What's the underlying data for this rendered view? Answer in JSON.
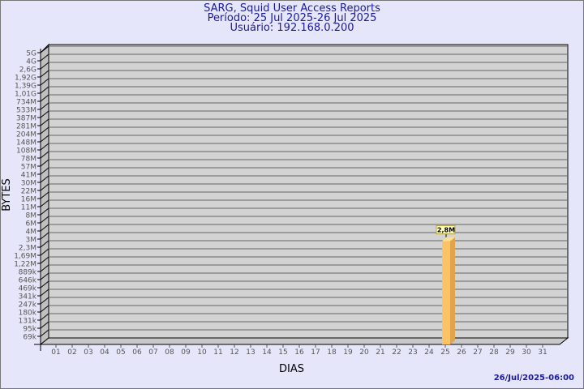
{
  "header": {
    "title": "SARG, Squid User Access Reports",
    "period": "Período: 25 Jul 2025-26 Jul 2025",
    "user": "Usuário: 192.168.0.200"
  },
  "footer": {
    "timestamp": "26/Jul/2025-06:00"
  },
  "colors": {
    "background": "#e6e6fa",
    "plot": "#d3d3d3",
    "bar": "#fbc266",
    "title": "#1a1a9a"
  },
  "chart_data": {
    "type": "bar",
    "style": "3d",
    "xlabel": "DIAS",
    "ylabel": "BYTES",
    "y_scale": "log",
    "grid": true,
    "y_ticks": [
      "5G",
      "4G",
      "2,6G",
      "1,92G",
      "1,39G",
      "1,01G",
      "734M",
      "533M",
      "387M",
      "281M",
      "204M",
      "148M",
      "108M",
      "78M",
      "57M",
      "41M",
      "30M",
      "22M",
      "16M",
      "11M",
      "8M",
      "6M",
      "4M",
      "3M",
      "2,3M",
      "1,69M",
      "1,22M",
      "889k",
      "646k",
      "469k",
      "341k",
      "247k",
      "180k",
      "131k",
      "95k",
      "69k"
    ],
    "categories": [
      "01",
      "02",
      "03",
      "04",
      "05",
      "06",
      "07",
      "08",
      "09",
      "10",
      "11",
      "12",
      "13",
      "14",
      "15",
      "16",
      "17",
      "18",
      "19",
      "20",
      "21",
      "22",
      "23",
      "24",
      "25",
      "26",
      "27",
      "28",
      "29",
      "30",
      "31"
    ],
    "bars": [
      {
        "category": "25",
        "value": 2800000,
        "label": "2,8M"
      }
    ]
  }
}
